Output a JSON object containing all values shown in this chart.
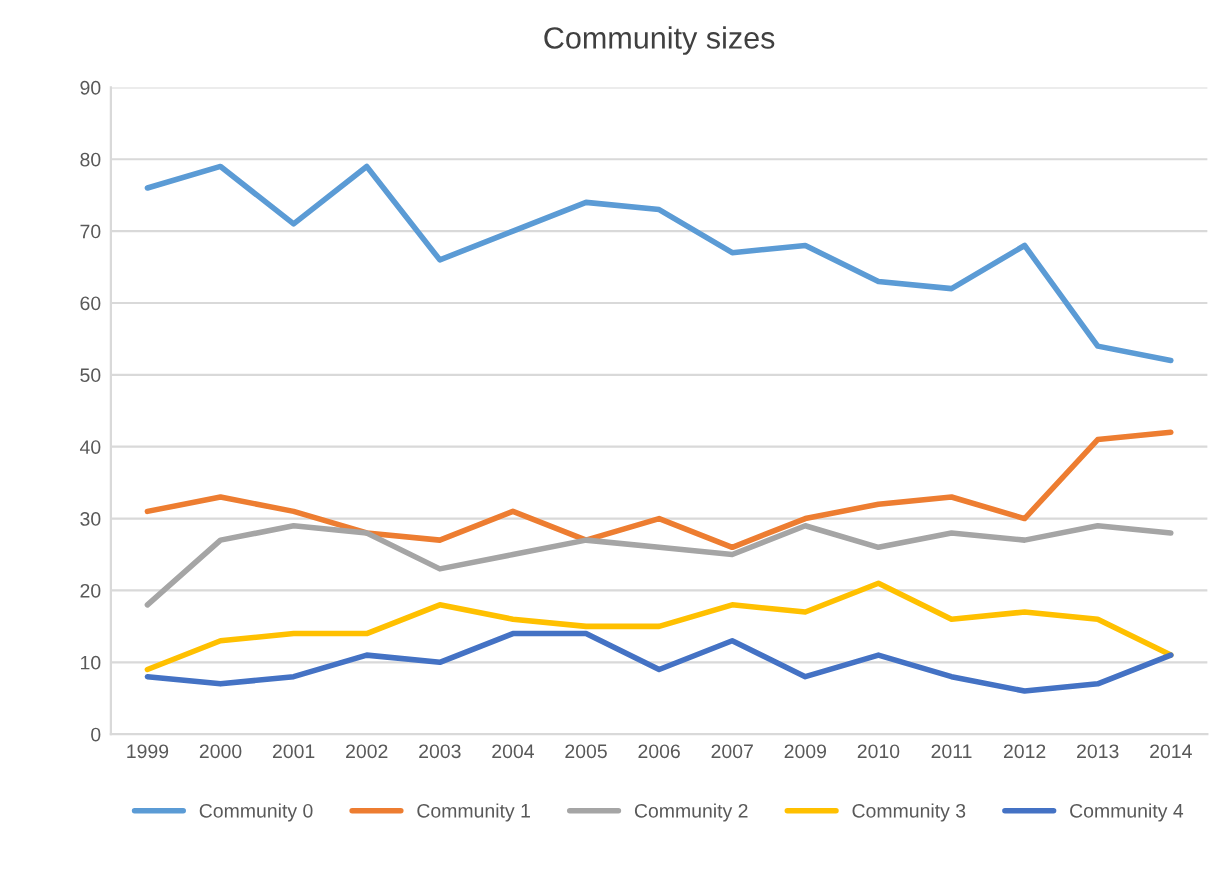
{
  "chart_data": {
    "type": "line",
    "title": "Community sizes",
    "categories": [
      "1999",
      "2000",
      "2001",
      "2002",
      "2003",
      "2004",
      "2005",
      "2006",
      "2007",
      "2009",
      "2010",
      "2011",
      "2012",
      "2013",
      "2014"
    ],
    "series": [
      {
        "name": "Community 0",
        "color": "#5b9bd5",
        "values": [
          76,
          79,
          71,
          79,
          66,
          70,
          74,
          73,
          67,
          68,
          63,
          62,
          68,
          54,
          52
        ]
      },
      {
        "name": "Community 1",
        "color": "#ed7d31",
        "values": [
          31,
          33,
          31,
          28,
          27,
          31,
          27,
          30,
          26,
          30,
          32,
          33,
          30,
          41,
          42
        ]
      },
      {
        "name": "Community 2",
        "color": "#a5a5a5",
        "values": [
          18,
          27,
          29,
          28,
          23,
          25,
          27,
          26,
          25,
          29,
          26,
          28,
          27,
          29,
          28
        ]
      },
      {
        "name": "Community 3",
        "color": "#ffc000",
        "values": [
          9,
          13,
          14,
          14,
          18,
          16,
          15,
          15,
          18,
          17,
          21,
          16,
          17,
          16,
          11
        ]
      },
      {
        "name": "Community 4",
        "color": "#4472c4",
        "values": [
          8,
          7,
          8,
          11,
          10,
          14,
          14,
          9,
          13,
          8,
          11,
          8,
          6,
          7,
          11
        ]
      }
    ],
    "ylim": [
      0,
      90
    ],
    "yticks": [
      0,
      10,
      20,
      30,
      40,
      50,
      60,
      70,
      80,
      90
    ],
    "grid": "y",
    "legend": "bottom",
    "marker": "none",
    "line_style": "solid"
  }
}
